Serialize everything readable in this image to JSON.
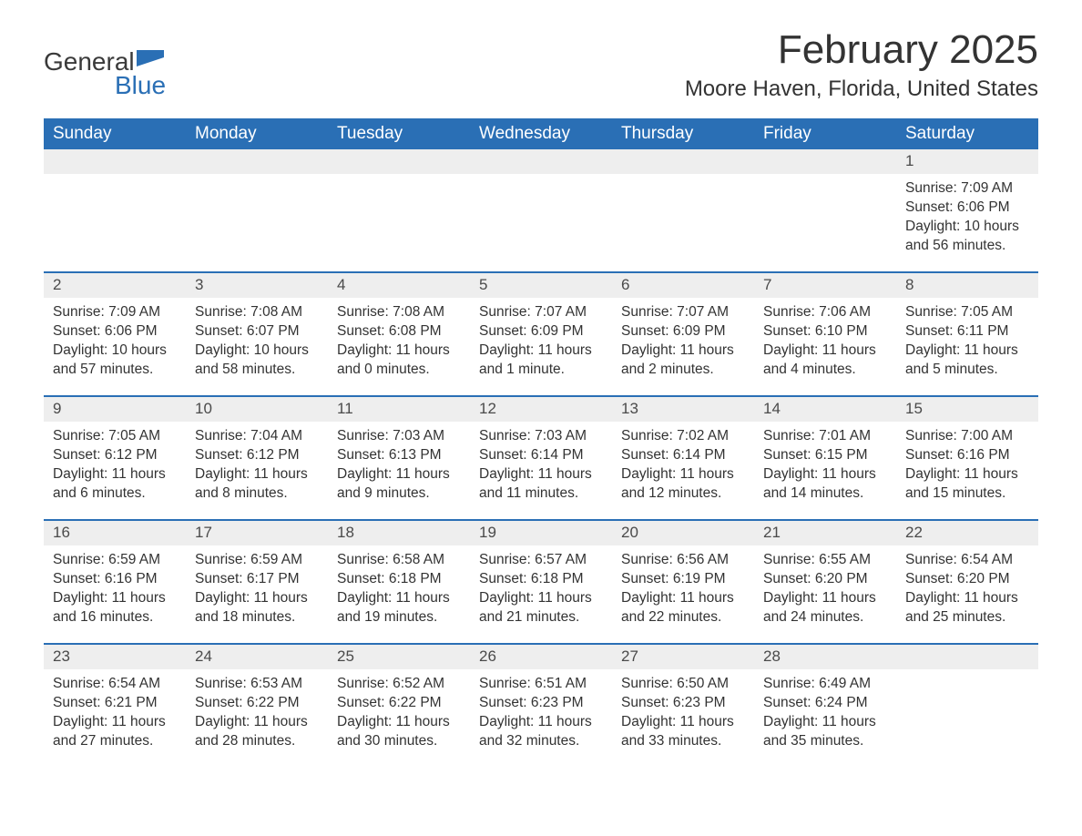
{
  "logo": {
    "part1": "General",
    "part2": "Blue"
  },
  "title": "February 2025",
  "location": "Moore Haven, Florida, United States",
  "colors": {
    "header_bg": "#2a6fb5",
    "header_text": "#ffffff",
    "day_num_bg": "#eeeeee",
    "text": "#333333",
    "logo_blue": "#2a6fb5"
  },
  "fonts": {
    "title_size": 44,
    "location_size": 24,
    "dow_size": 19,
    "body_size": 15.5
  },
  "days_of_week": [
    "Sunday",
    "Monday",
    "Tuesday",
    "Wednesday",
    "Thursday",
    "Friday",
    "Saturday"
  ],
  "weeks": [
    [
      {
        "blank": true
      },
      {
        "blank": true
      },
      {
        "blank": true
      },
      {
        "blank": true
      },
      {
        "blank": true
      },
      {
        "blank": true
      },
      {
        "n": "1",
        "sr": "Sunrise: 7:09 AM",
        "ss": "Sunset: 6:06 PM",
        "d1": "Daylight: 10 hours",
        "d2": "and 56 minutes."
      }
    ],
    [
      {
        "n": "2",
        "sr": "Sunrise: 7:09 AM",
        "ss": "Sunset: 6:06 PM",
        "d1": "Daylight: 10 hours",
        "d2": "and 57 minutes."
      },
      {
        "n": "3",
        "sr": "Sunrise: 7:08 AM",
        "ss": "Sunset: 6:07 PM",
        "d1": "Daylight: 10 hours",
        "d2": "and 58 minutes."
      },
      {
        "n": "4",
        "sr": "Sunrise: 7:08 AM",
        "ss": "Sunset: 6:08 PM",
        "d1": "Daylight: 11 hours",
        "d2": "and 0 minutes."
      },
      {
        "n": "5",
        "sr": "Sunrise: 7:07 AM",
        "ss": "Sunset: 6:09 PM",
        "d1": "Daylight: 11 hours",
        "d2": "and 1 minute."
      },
      {
        "n": "6",
        "sr": "Sunrise: 7:07 AM",
        "ss": "Sunset: 6:09 PM",
        "d1": "Daylight: 11 hours",
        "d2": "and 2 minutes."
      },
      {
        "n": "7",
        "sr": "Sunrise: 7:06 AM",
        "ss": "Sunset: 6:10 PM",
        "d1": "Daylight: 11 hours",
        "d2": "and 4 minutes."
      },
      {
        "n": "8",
        "sr": "Sunrise: 7:05 AM",
        "ss": "Sunset: 6:11 PM",
        "d1": "Daylight: 11 hours",
        "d2": "and 5 minutes."
      }
    ],
    [
      {
        "n": "9",
        "sr": "Sunrise: 7:05 AM",
        "ss": "Sunset: 6:12 PM",
        "d1": "Daylight: 11 hours",
        "d2": "and 6 minutes."
      },
      {
        "n": "10",
        "sr": "Sunrise: 7:04 AM",
        "ss": "Sunset: 6:12 PM",
        "d1": "Daylight: 11 hours",
        "d2": "and 8 minutes."
      },
      {
        "n": "11",
        "sr": "Sunrise: 7:03 AM",
        "ss": "Sunset: 6:13 PM",
        "d1": "Daylight: 11 hours",
        "d2": "and 9 minutes."
      },
      {
        "n": "12",
        "sr": "Sunrise: 7:03 AM",
        "ss": "Sunset: 6:14 PM",
        "d1": "Daylight: 11 hours",
        "d2": "and 11 minutes."
      },
      {
        "n": "13",
        "sr": "Sunrise: 7:02 AM",
        "ss": "Sunset: 6:14 PM",
        "d1": "Daylight: 11 hours",
        "d2": "and 12 minutes."
      },
      {
        "n": "14",
        "sr": "Sunrise: 7:01 AM",
        "ss": "Sunset: 6:15 PM",
        "d1": "Daylight: 11 hours",
        "d2": "and 14 minutes."
      },
      {
        "n": "15",
        "sr": "Sunrise: 7:00 AM",
        "ss": "Sunset: 6:16 PM",
        "d1": "Daylight: 11 hours",
        "d2": "and 15 minutes."
      }
    ],
    [
      {
        "n": "16",
        "sr": "Sunrise: 6:59 AM",
        "ss": "Sunset: 6:16 PM",
        "d1": "Daylight: 11 hours",
        "d2": "and 16 minutes."
      },
      {
        "n": "17",
        "sr": "Sunrise: 6:59 AM",
        "ss": "Sunset: 6:17 PM",
        "d1": "Daylight: 11 hours",
        "d2": "and 18 minutes."
      },
      {
        "n": "18",
        "sr": "Sunrise: 6:58 AM",
        "ss": "Sunset: 6:18 PM",
        "d1": "Daylight: 11 hours",
        "d2": "and 19 minutes."
      },
      {
        "n": "19",
        "sr": "Sunrise: 6:57 AM",
        "ss": "Sunset: 6:18 PM",
        "d1": "Daylight: 11 hours",
        "d2": "and 21 minutes."
      },
      {
        "n": "20",
        "sr": "Sunrise: 6:56 AM",
        "ss": "Sunset: 6:19 PM",
        "d1": "Daylight: 11 hours",
        "d2": "and 22 minutes."
      },
      {
        "n": "21",
        "sr": "Sunrise: 6:55 AM",
        "ss": "Sunset: 6:20 PM",
        "d1": "Daylight: 11 hours",
        "d2": "and 24 minutes."
      },
      {
        "n": "22",
        "sr": "Sunrise: 6:54 AM",
        "ss": "Sunset: 6:20 PM",
        "d1": "Daylight: 11 hours",
        "d2": "and 25 minutes."
      }
    ],
    [
      {
        "n": "23",
        "sr": "Sunrise: 6:54 AM",
        "ss": "Sunset: 6:21 PM",
        "d1": "Daylight: 11 hours",
        "d2": "and 27 minutes."
      },
      {
        "n": "24",
        "sr": "Sunrise: 6:53 AM",
        "ss": "Sunset: 6:22 PM",
        "d1": "Daylight: 11 hours",
        "d2": "and 28 minutes."
      },
      {
        "n": "25",
        "sr": "Sunrise: 6:52 AM",
        "ss": "Sunset: 6:22 PM",
        "d1": "Daylight: 11 hours",
        "d2": "and 30 minutes."
      },
      {
        "n": "26",
        "sr": "Sunrise: 6:51 AM",
        "ss": "Sunset: 6:23 PM",
        "d1": "Daylight: 11 hours",
        "d2": "and 32 minutes."
      },
      {
        "n": "27",
        "sr": "Sunrise: 6:50 AM",
        "ss": "Sunset: 6:23 PM",
        "d1": "Daylight: 11 hours",
        "d2": "and 33 minutes."
      },
      {
        "n": "28",
        "sr": "Sunrise: 6:49 AM",
        "ss": "Sunset: 6:24 PM",
        "d1": "Daylight: 11 hours",
        "d2": "and 35 minutes."
      },
      {
        "blank": true
      }
    ]
  ]
}
